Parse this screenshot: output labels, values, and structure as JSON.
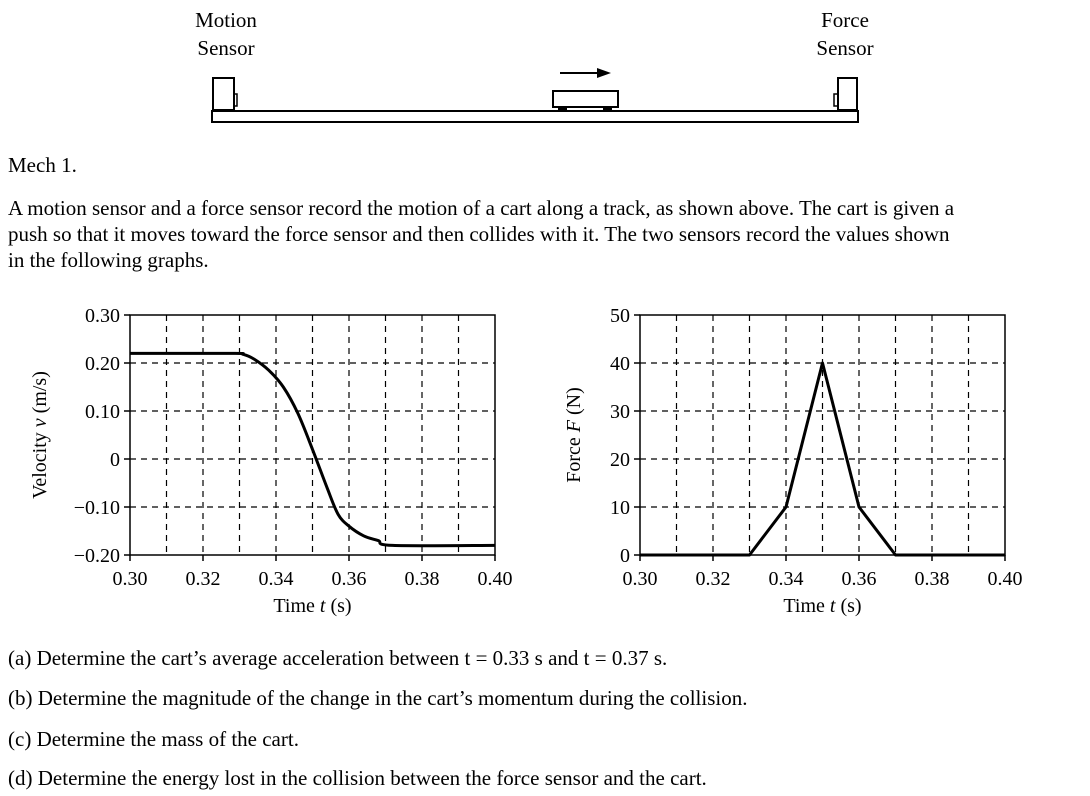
{
  "diagram": {
    "motion_sensor_label": [
      "Motion",
      "Sensor"
    ],
    "force_sensor_label": [
      "Force",
      "Sensor"
    ]
  },
  "problem": {
    "heading": "Mech 1.",
    "intro_lines": [
      "A motion sensor and a force sensor record the motion of a cart along a track, as shown above. The cart is given a",
      "push so that it moves toward the force sensor and then collides with it. The two sensors record the values shown",
      "in the following graphs."
    ],
    "questions": [
      {
        "label": "(a)",
        "text": "Determine the cart’s average acceleration between t = 0.33 s and t = 0.37 s."
      },
      {
        "label": "(b)",
        "text": "Determine the magnitude of the change in the cart’s momentum during the collision."
      },
      {
        "label": "(c)",
        "text": "Determine the mass of the cart."
      },
      {
        "label": "(d)",
        "text": "Determine the energy lost in the collision between the force sensor and the cart."
      }
    ]
  },
  "chart_data": [
    {
      "type": "line",
      "xlabel": "Time t (s)",
      "ylabel": "Velocity v (m/s)",
      "xlim": [
        0.3,
        0.4
      ],
      "ylim": [
        -0.2,
        0.3
      ],
      "xticks": [
        "0.30",
        "0.32",
        "0.34",
        "0.36",
        "0.38",
        "0.40"
      ],
      "yticks": [
        "−0.20",
        "−0.10",
        "0",
        "0.10",
        "0.20",
        "0.30"
      ],
      "grid": "dashed",
      "series": [
        {
          "x": [
            0.3,
            0.328,
            0.331,
            0.334,
            0.338,
            0.342,
            0.346,
            0.35,
            0.354,
            0.357,
            0.36,
            0.364,
            0.368,
            0.372,
            0.4
          ],
          "y": [
            0.22,
            0.22,
            0.218,
            0.208,
            0.185,
            0.15,
            0.095,
            0.02,
            -0.06,
            -0.115,
            -0.14,
            -0.16,
            -0.17,
            -0.18,
            -0.18
          ]
        }
      ]
    },
    {
      "type": "line",
      "xlabel": "Time t (s)",
      "ylabel": "Force F (N)",
      "xlim": [
        0.3,
        0.4
      ],
      "ylim": [
        0,
        50
      ],
      "xticks": [
        "0.30",
        "0.32",
        "0.34",
        "0.36",
        "0.38",
        "0.40"
      ],
      "yticks": [
        "0",
        "10",
        "20",
        "30",
        "40",
        "50"
      ],
      "grid": "dashed",
      "series": [
        {
          "x": [
            0.3,
            0.33,
            0.34,
            0.35,
            0.36,
            0.37,
            0.4
          ],
          "y": [
            0,
            0,
            10,
            40,
            10,
            0,
            0
          ]
        }
      ]
    }
  ]
}
